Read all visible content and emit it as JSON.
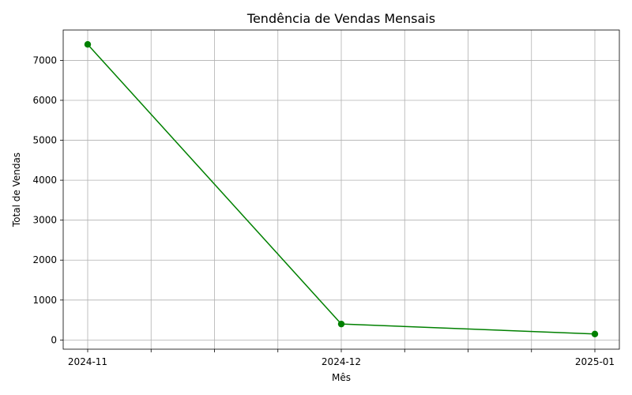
{
  "chart_data": {
    "type": "line",
    "title": "Tendência de Vendas Mensais",
    "xlabel": "Mês",
    "ylabel": "Total de Vendas",
    "x": [
      "2024-11",
      "2024-12",
      "2025-01"
    ],
    "series": [
      {
        "values": [
          7400,
          400,
          150
        ],
        "color": "#008000",
        "marker": "circle"
      }
    ],
    "ylim": [
      -230,
      7760
    ],
    "yticks": [
      0,
      1000,
      2000,
      3000,
      4000,
      5000,
      6000,
      7000
    ],
    "minor_x_ticks_between": 3,
    "grid": true,
    "legend": "none"
  }
}
